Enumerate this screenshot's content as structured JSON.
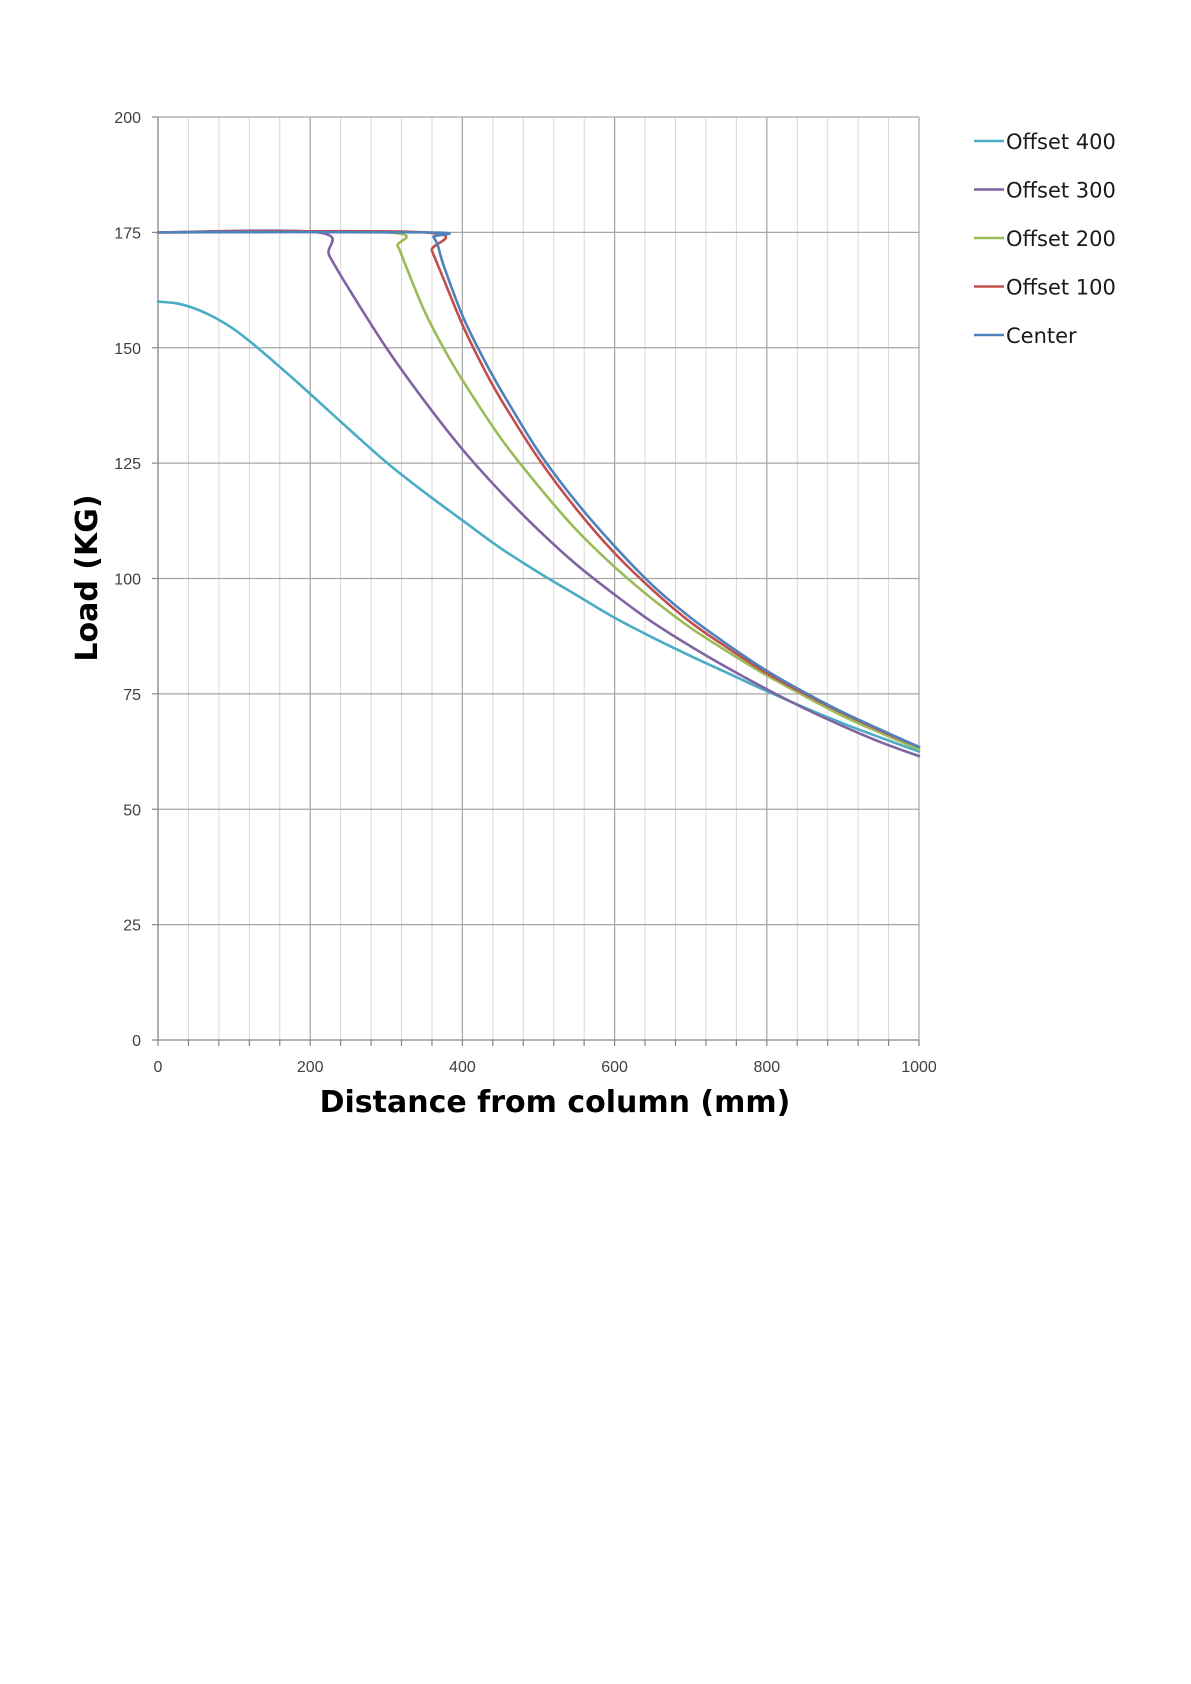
{
  "chart_data": {
    "type": "line",
    "title": "",
    "xlabel": "Distance from column (mm)",
    "ylabel": "Load (KG)",
    "xlim": [
      0,
      1000
    ],
    "ylim": [
      0,
      200
    ],
    "x_ticks": [
      0,
      200,
      400,
      600,
      800,
      1000
    ],
    "y_ticks": [
      0,
      25,
      50,
      75,
      100,
      125,
      150,
      175,
      200
    ],
    "x_minor_step": 40,
    "grid": true,
    "legend_position": "right",
    "series": [
      {
        "name": "Offset 400",
        "color": "#4bacc6",
        "x": [
          0,
          25,
          50,
          75,
          100,
          125,
          150,
          175,
          200,
          250,
          300,
          350,
          400,
          450,
          500,
          550,
          600,
          650,
          700,
          750,
          800,
          850,
          900,
          950,
          1000
        ],
        "y": [
          160,
          159.6,
          158.4,
          156.5,
          154,
          150.8,
          147.3,
          143.7,
          140,
          132.5,
          125.2,
          118.7,
          112.6,
          106.6,
          101.3,
          96.4,
          91.5,
          87.2,
          83.2,
          79.4,
          75.6,
          72.0,
          68.6,
          65.5,
          62.5
        ]
      },
      {
        "name": "Offset 300",
        "color": "#8064a2",
        "x": [
          0,
          210,
          225,
          250,
          300,
          350,
          400,
          450,
          500,
          550,
          600,
          650,
          700,
          750,
          800,
          850,
          900,
          950,
          1000
        ],
        "y": [
          175,
          175,
          170,
          163,
          150,
          138.5,
          128,
          118.8,
          110.5,
          103,
          96.5,
          90.5,
          85.3,
          80.5,
          76,
          71.8,
          68.0,
          64.5,
          61.5
        ]
      },
      {
        "name": "Offset 200",
        "color": "#9bbb59",
        "x": [
          0,
          300,
          315,
          325,
          350,
          375,
          400,
          450,
          500,
          550,
          600,
          650,
          700,
          750,
          800,
          850,
          900,
          950,
          1000
        ],
        "y": [
          175,
          175,
          172,
          168,
          158,
          150,
          143,
          130.5,
          120,
          110.5,
          102.5,
          95.5,
          89.3,
          84,
          79,
          74.5,
          70.2,
          66.5,
          63
        ]
      },
      {
        "name": "Offset 100",
        "color": "#c0504d",
        "x": [
          0,
          350,
          360,
          375,
          400,
          425,
          450,
          500,
          550,
          600,
          650,
          700,
          750,
          800,
          850,
          900,
          950,
          1000
        ],
        "y": [
          175,
          175,
          171,
          165,
          155,
          146.5,
          139,
          126,
          115,
          105.5,
          97.5,
          90.5,
          84.8,
          79.5,
          75,
          70.8,
          67,
          63.5
        ]
      },
      {
        "name": "Center",
        "color": "#4f81bd",
        "x": [
          0,
          355,
          362,
          368,
          375,
          400,
          425,
          450,
          500,
          550,
          600,
          650,
          700,
          750,
          800,
          850,
          900,
          950,
          1000
        ],
        "y": [
          175,
          175,
          174,
          172,
          168,
          157,
          148.5,
          141,
          127.5,
          116.5,
          107,
          98.5,
          91.5,
          85.5,
          80,
          75.3,
          71.0,
          67.2,
          63.5
        ]
      }
    ]
  }
}
